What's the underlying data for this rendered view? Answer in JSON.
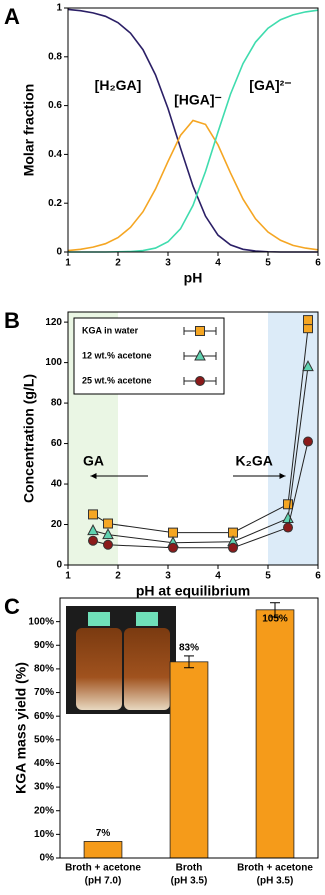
{
  "chart_data": [
    {
      "type": "line",
      "panel_label": "A",
      "x_label": "pH",
      "y_label": "Molar fraction",
      "x": [
        1,
        1.25,
        1.5,
        1.75,
        2,
        2.25,
        2.5,
        2.75,
        3,
        3.25,
        3.5,
        3.75,
        4,
        4.25,
        4.5,
        4.75,
        5,
        5.25,
        5.5,
        5.75,
        6
      ],
      "series": [
        {
          "name": "[H₂GA]",
          "color": "#2b1f66",
          "values": [
            0.994,
            0.989,
            0.98,
            0.966,
            0.94,
            0.897,
            0.829,
            0.726,
            0.588,
            0.426,
            0.27,
            0.147,
            0.069,
            0.029,
            0.011,
            0.004,
            0.001,
            0,
            0,
            0,
            0
          ]
        },
        {
          "name": "[HGA]⁻",
          "color": "#f5a623",
          "values": [
            0.006,
            0.011,
            0.02,
            0.034,
            0.059,
            0.101,
            0.165,
            0.258,
            0.371,
            0.478,
            0.539,
            0.523,
            0.439,
            0.324,
            0.217,
            0.136,
            0.082,
            0.048,
            0.027,
            0.016,
            0.009
          ]
        },
        {
          "name": "[GA]²⁻",
          "color": "#3fdcae",
          "values": [
            0,
            0,
            0,
            0,
            0.001,
            0.002,
            0.006,
            0.016,
            0.042,
            0.095,
            0.191,
            0.33,
            0.492,
            0.647,
            0.772,
            0.86,
            0.917,
            0.952,
            0.972,
            0.984,
            0.991
          ]
        }
      ],
      "xlim": [
        1,
        6
      ],
      "xticks": [
        1,
        2,
        3,
        4,
        5,
        6
      ],
      "ylim": [
        0,
        1
      ],
      "yticks": [
        0,
        0.2,
        0.4,
        0.6,
        0.8,
        1
      ]
    },
    {
      "type": "line",
      "panel_label": "B",
      "x_label": "pH at equilibrium",
      "y_label": "Concentration (g/L)",
      "series": [
        {
          "name": "KGA in water",
          "color": "#f5a623",
          "marker": "square",
          "x": [
            1.5,
            1.8,
            3.1,
            4.3,
            5.4,
            5.8,
            5.8
          ],
          "values": [
            25,
            20.5,
            16,
            16,
            30,
            117,
            121
          ]
        },
        {
          "name": "12 wt.% acetone",
          "color": "#5fd3b0",
          "marker": "triangle",
          "x": [
            1.5,
            1.8,
            3.1,
            4.3,
            5.4,
            5.8
          ],
          "values": [
            17,
            15,
            11,
            11.5,
            23,
            98
          ]
        },
        {
          "name": "25 wt.% acetone",
          "color": "#8b1a1a",
          "marker": "circle",
          "x": [
            1.5,
            1.8,
            3.1,
            4.3,
            5.4,
            5.8
          ],
          "values": [
            12,
            10,
            8.5,
            8.5,
            18.5,
            61
          ]
        }
      ],
      "shaded_regions": [
        {
          "xlim": [
            1,
            2
          ],
          "color": "#eaf6e4"
        },
        {
          "xlim": [
            5,
            6
          ],
          "color": "#dcebf8"
        }
      ],
      "annotations": [
        "GA",
        "K₂GA"
      ],
      "legend": "top-left",
      "xlim": [
        1,
        6
      ],
      "xticks": [
        1,
        2,
        3,
        4,
        5,
        6
      ],
      "ylim": [
        0,
        125
      ],
      "yticks": [
        0,
        20,
        40,
        60,
        80,
        100,
        120
      ]
    },
    {
      "type": "bar",
      "panel_label": "C",
      "y_label": "KGA mass yield (%)",
      "categories": [
        [
          "Broth + acetone",
          "(pH 7.0)"
        ],
        [
          "Broth",
          "(pH 3.5)"
        ],
        [
          "Broth + acetone",
          "(pH 3.5)"
        ]
      ],
      "values": [
        7,
        83,
        105
      ],
      "value_labels": [
        "7%",
        "83%",
        "105%"
      ],
      "errors": [
        null,
        2.5,
        3
      ],
      "color": "#f59b1a",
      "ylim": [
        0,
        110
      ],
      "yticks": [
        {
          "value": 0,
          "label": "0%"
        },
        {
          "value": 10,
          "label": "10%"
        },
        {
          "value": 20,
          "label": "20%"
        },
        {
          "value": 30,
          "label": "30%"
        },
        {
          "value": 40,
          "label": "40%"
        },
        {
          "value": 50,
          "label": "50%"
        },
        {
          "value": 60,
          "label": "60%"
        },
        {
          "value": 70,
          "label": "70%"
        },
        {
          "value": 80,
          "label": "80%"
        },
        {
          "value": 90,
          "label": "90%"
        },
        {
          "value": 100,
          "label": "100%"
        }
      ]
    }
  ]
}
